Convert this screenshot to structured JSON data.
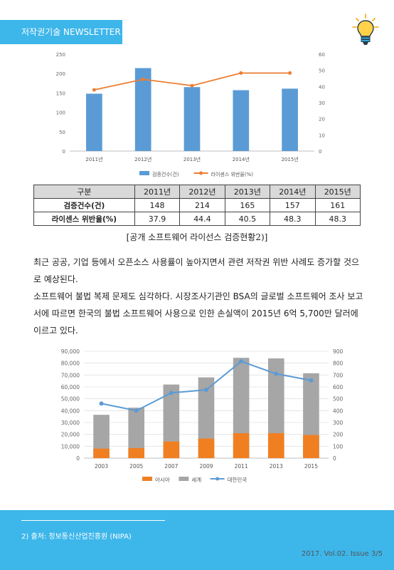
{
  "header": {
    "title": "저작권기술 NEWSLETTER"
  },
  "chart1": {
    "type": "bar",
    "categories": [
      "2011년",
      "2012년",
      "2013년",
      "2014년",
      "2015년"
    ],
    "series": [
      {
        "name": "검증건수(건)",
        "type": "bar",
        "axis": "left",
        "values": [
          148,
          214,
          165,
          157,
          161
        ],
        "color": "#5b9bd5"
      },
      {
        "name": "라이센스 위반율(%)",
        "type": "line",
        "axis": "right",
        "values": [
          37.9,
          44.4,
          40.5,
          48.3,
          48.3
        ],
        "color": "#ed7d31"
      }
    ],
    "ylim": [
      0,
      250
    ],
    "yticks": [
      "0",
      "50",
      "100",
      "150",
      "200",
      "250"
    ],
    "y2lim": [
      0,
      60
    ],
    "y2ticks": [
      "0",
      "10",
      "20",
      "30",
      "40",
      "50",
      "60"
    ],
    "legend": "bottom"
  },
  "table": {
    "headers": [
      "구분",
      "2011년",
      "2012년",
      "2013년",
      "2014년",
      "2015년"
    ],
    "rows": [
      {
        "label": "검증건수(건)",
        "values": [
          "148",
          "214",
          "165",
          "157",
          "161"
        ]
      },
      {
        "label": "라이센스 위반율(%)",
        "values": [
          "37.9",
          "44.4",
          "40.5",
          "48.3",
          "48.3"
        ]
      }
    ]
  },
  "caption": "[공개 소프트웨어 라이선스 검증현황2)]",
  "paragraphs": [
    "최근 공공, 기업 등에서 오픈소스 사용률이 높아지면서 관련 저작권 위반 사례도 증가할 것으로 예상된다.",
    "소프트웨어 불법 복제 문제도 심각하다. 시장조사기관인 BSA의 글로벌 소프트웨어 조사 보고서에 따르면 한국의 불법 소프트웨어 사용으로 인한 손실액이 2015년 6억 5,700만 달러에 이르고 있다."
  ],
  "chart2": {
    "type": "bar",
    "categories": [
      "2003",
      "2005",
      "2007",
      "2009",
      "2011",
      "2013",
      "2015"
    ],
    "series": [
      {
        "name": "아시아",
        "type": "bar",
        "axis": "left",
        "values": [
          8000,
          8500,
          14000,
          16500,
          21000,
          21000,
          19500
        ],
        "color": "#f07f22"
      },
      {
        "name": "세계",
        "type": "bar",
        "axis": "left",
        "values": [
          36500,
          42500,
          62000,
          68000,
          84500,
          84000,
          71500
        ],
        "color": "#a6a6a6"
      },
      {
        "name": "대한민국",
        "type": "line",
        "axis": "right",
        "values": [
          460,
          400,
          550,
          575,
          815,
          710,
          655
        ],
        "color": "#5b9bd5"
      }
    ],
    "ylim": [
      0,
      90000
    ],
    "yticks": [
      "0",
      "10,000",
      "20,000",
      "30,000",
      "40,000",
      "50,000",
      "60,000",
      "70,000",
      "80,000",
      "90,000"
    ],
    "y2lim": [
      0,
      900
    ],
    "y2ticks": [
      "0",
      "100",
      "200",
      "300",
      "400",
      "500",
      "600",
      "700",
      "800",
      "900"
    ],
    "legend": "bottom"
  },
  "footer": {
    "footnote": "2) 출처: 정보통신산업진흥원 (NIPA)",
    "issue": "2017. Vol.02. Issue 3/5"
  },
  "colors": {
    "accent": "#3db6ea"
  }
}
